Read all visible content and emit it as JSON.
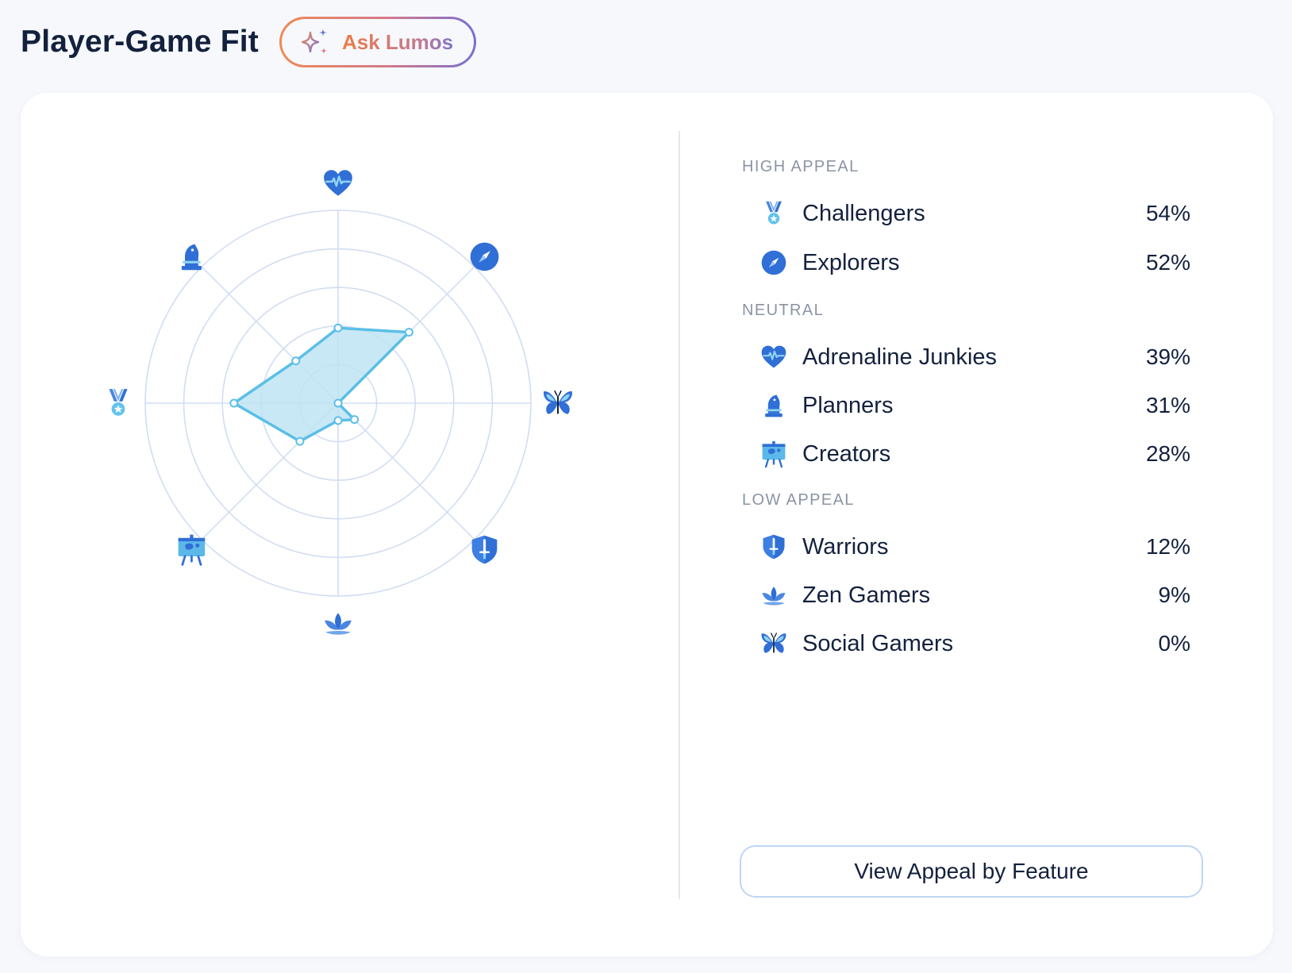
{
  "header": {
    "title": "Player-Game Fit",
    "ask_button": {
      "label": "Ask Lumos",
      "icon": "sparkle-icon"
    }
  },
  "colors": {
    "accent": "#2f6fd6",
    "radar_fill": "#bfe4f3",
    "radar_stroke": "#5bbfe6",
    "grid": "#d2ddf2",
    "gradient": [
      "#ef8a55",
      "#d47a8c",
      "#7a6fd0"
    ]
  },
  "appeal": {
    "groups": [
      {
        "title": "HIGH APPEAL",
        "items": [
          {
            "label": "Challengers",
            "value": "54%",
            "icon": "medal-icon"
          },
          {
            "label": "Explorers",
            "value": "52%",
            "icon": "compass-icon"
          }
        ]
      },
      {
        "title": "NEUTRAL",
        "items": [
          {
            "label": "Adrenaline Junkies",
            "value": "39%",
            "icon": "heart-pulse-icon"
          },
          {
            "label": "Planners",
            "value": "31%",
            "icon": "chess-knight-icon"
          },
          {
            "label": "Creators",
            "value": "28%",
            "icon": "easel-icon"
          }
        ]
      },
      {
        "title": "LOW APPEAL",
        "items": [
          {
            "label": "Warriors",
            "value": "12%",
            "icon": "shield-sword-icon"
          },
          {
            "label": "Zen Gamers",
            "value": "9%",
            "icon": "lotus-icon"
          },
          {
            "label": "Social Gamers",
            "value": "0%",
            "icon": "butterfly-icon"
          }
        ]
      }
    ]
  },
  "radar": {
    "rings": 5,
    "max": 100,
    "axes": [
      {
        "icon": "heart-pulse-icon",
        "value": 39
      },
      {
        "icon": "compass-icon",
        "value": 52
      },
      {
        "icon": "butterfly-icon",
        "value": 0
      },
      {
        "icon": "shield-sword-icon",
        "value": 12
      },
      {
        "icon": "lotus-icon",
        "value": 9
      },
      {
        "icon": "easel-icon",
        "value": 28
      },
      {
        "icon": "medal-icon",
        "value": 54
      },
      {
        "icon": "chess-knight-icon",
        "value": 31
      }
    ]
  },
  "footer": {
    "view_button_label": "View Appeal by Feature"
  }
}
